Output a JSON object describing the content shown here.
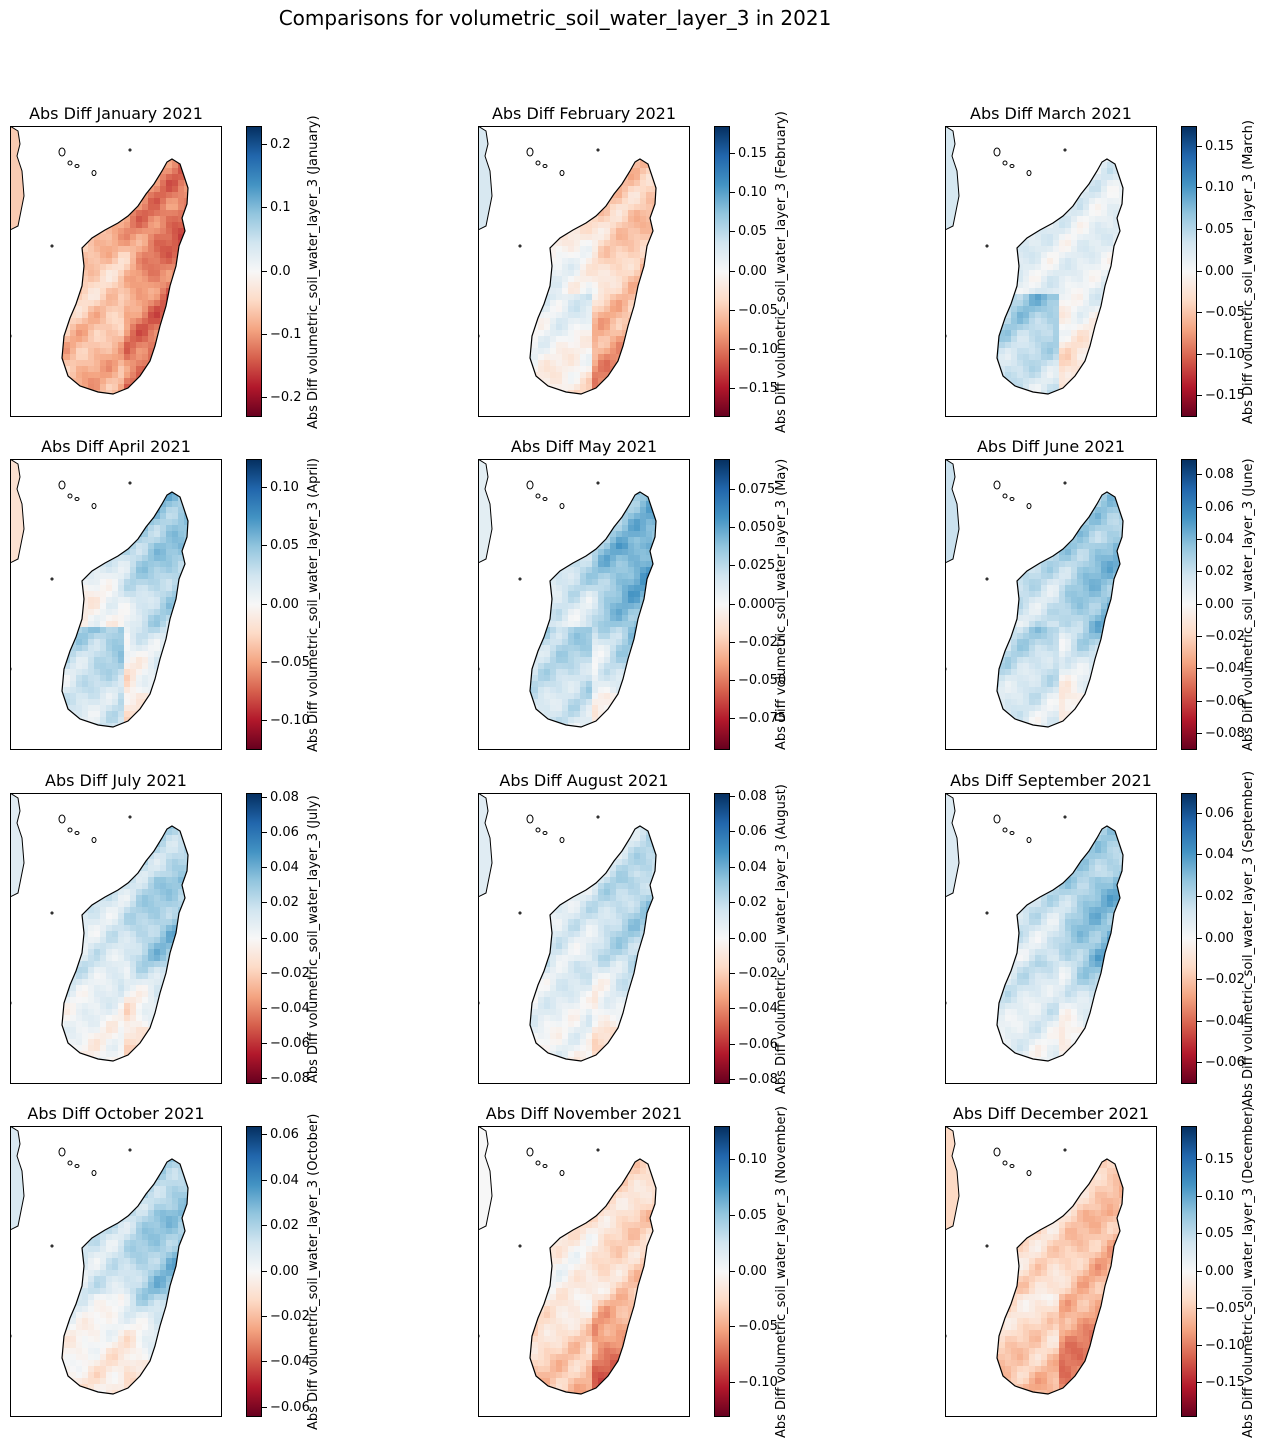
{
  "figure": {
    "title": "Comparisons for volumetric_soil_water_layer_3 in 2021"
  },
  "colors": {
    "diverging_low": "#67001f",
    "diverging_mid": "#f7f7f7",
    "diverging_high": "#053061",
    "coastline": "#000000"
  },
  "chart_data": [
    {
      "type": "heatmap",
      "title": "Abs Diff January 2021",
      "month": "January",
      "colorbar_label": "Abs Diff volumetric_soil_water_layer_3 (January)",
      "vmin": -0.23,
      "vmax": 0.23,
      "ticks": [
        "0.2",
        "0.1",
        "0.0",
        "−0.1",
        "−0.2"
      ],
      "tick_values": [
        0.2,
        0.1,
        0.0,
        -0.1,
        -0.2
      ],
      "pattern": {
        "north": -0.14,
        "east_center": -0.19,
        "west": -0.06,
        "south": -0.17,
        "southwest": -0.04
      }
    },
    {
      "type": "heatmap",
      "title": "Abs Diff February 2021",
      "month": "February",
      "colorbar_label": "Abs Diff volumetric_soil_water_layer_3 (February)",
      "vmin": -0.185,
      "vmax": 0.185,
      "ticks": [
        "0.15",
        "0.10",
        "0.05",
        "0.00",
        "−0.05",
        "−0.10",
        "−0.15"
      ],
      "tick_values": [
        0.15,
        0.1,
        0.05,
        0.0,
        -0.05,
        -0.1,
        -0.15
      ],
      "pattern": {
        "north": -0.06,
        "east_center": -0.08,
        "west": 0.03,
        "south": -0.14,
        "southwest": 0.06
      }
    },
    {
      "type": "heatmap",
      "title": "Abs Diff March 2021",
      "month": "March",
      "colorbar_label": "Abs Diff volumetric_soil_water_layer_3 (March)",
      "vmin": -0.175,
      "vmax": 0.175,
      "ticks": [
        "0.15",
        "0.10",
        "0.05",
        "0.00",
        "−0.05",
        "−0.10",
        "−0.15"
      ],
      "tick_values": [
        0.15,
        0.1,
        0.05,
        0.0,
        -0.05,
        -0.1,
        -0.15
      ],
      "pattern": {
        "north": 0.02,
        "east_center": 0.02,
        "west": 0.03,
        "south": -0.06,
        "southwest": 0.12
      }
    },
    {
      "type": "heatmap",
      "title": "Abs Diff April 2021",
      "month": "April",
      "colorbar_label": "Abs Diff volumetric_soil_water_layer_3 (April)",
      "vmin": -0.125,
      "vmax": 0.125,
      "ticks": [
        "0.10",
        "0.05",
        "0.00",
        "−0.05",
        "−0.10"
      ],
      "tick_values": [
        0.1,
        0.05,
        0.0,
        -0.05,
        -0.1
      ],
      "pattern": {
        "north": 0.07,
        "east_center": 0.06,
        "west": -0.02,
        "south": -0.04,
        "southwest": 0.09
      }
    },
    {
      "type": "heatmap",
      "title": "Abs Diff May 2021",
      "month": "May",
      "colorbar_label": "Abs Diff volumetric_soil_water_layer_3 (May)",
      "vmin": -0.095,
      "vmax": 0.095,
      "ticks": [
        "0.075",
        "0.050",
        "0.025",
        "0.000",
        "−0.025",
        "−0.050",
        "−0.075"
      ],
      "tick_values": [
        0.075,
        0.05,
        0.025,
        0.0,
        -0.025,
        -0.05,
        -0.075
      ],
      "pattern": {
        "north": 0.05,
        "east_center": 0.07,
        "west": 0.01,
        "south": -0.02,
        "southwest": 0.05
      }
    },
    {
      "type": "heatmap",
      "title": "Abs Diff June 2021",
      "month": "June",
      "colorbar_label": "Abs Diff volumetric_soil_water_layer_3 (June)",
      "vmin": -0.09,
      "vmax": 0.09,
      "ticks": [
        "0.08",
        "0.06",
        "0.04",
        "0.02",
        "0.00",
        "−0.02",
        "−0.04",
        "−0.06",
        "−0.08"
      ],
      "tick_values": [
        0.08,
        0.06,
        0.04,
        0.02,
        0.0,
        -0.02,
        -0.04,
        -0.06,
        -0.08
      ],
      "pattern": {
        "north": 0.03,
        "east_center": 0.06,
        "west": 0.02,
        "south": -0.03,
        "southwest": 0.04
      }
    },
    {
      "type": "heatmap",
      "title": "Abs Diff July 2021",
      "month": "July",
      "colorbar_label": "Abs Diff volumetric_soil_water_layer_3 (July)",
      "vmin": -0.083,
      "vmax": 0.083,
      "ticks": [
        "0.08",
        "0.06",
        "0.04",
        "0.02",
        "0.00",
        "−0.02",
        "−0.04",
        "−0.06",
        "−0.08"
      ],
      "tick_values": [
        0.08,
        0.06,
        0.04,
        0.02,
        0.0,
        -0.02,
        -0.04,
        -0.06,
        -0.08
      ],
      "pattern": {
        "north": 0.02,
        "east_center": 0.05,
        "west": 0.01,
        "south": -0.04,
        "southwest": 0.02
      }
    },
    {
      "type": "heatmap",
      "title": "Abs Diff August 2021",
      "month": "August",
      "colorbar_label": "Abs Diff volumetric_soil_water_layer_3 (August)",
      "vmin": -0.082,
      "vmax": 0.082,
      "ticks": [
        "0.08",
        "0.06",
        "0.04",
        "0.02",
        "0.00",
        "−0.02",
        "−0.04",
        "−0.06",
        "−0.08"
      ],
      "tick_values": [
        0.08,
        0.06,
        0.04,
        0.02,
        0.0,
        -0.02,
        -0.04,
        -0.06,
        -0.08
      ],
      "pattern": {
        "north": 0.02,
        "east_center": 0.04,
        "west": 0.01,
        "south": -0.03,
        "southwest": 0.02
      }
    },
    {
      "type": "heatmap",
      "title": "Abs Diff September 2021",
      "month": "September",
      "colorbar_label": "Abs Diff volumetric_soil_water_layer_3 (September)",
      "vmin": -0.07,
      "vmax": 0.07,
      "ticks": [
        "0.06",
        "0.04",
        "0.02",
        "0.00",
        "−0.02",
        "−0.04",
        "−0.06"
      ],
      "tick_values": [
        0.06,
        0.04,
        0.02,
        0.0,
        -0.02,
        -0.04,
        -0.06
      ],
      "pattern": {
        "north": 0.02,
        "east_center": 0.05,
        "west": 0.01,
        "south": -0.02,
        "southwest": 0.02
      }
    },
    {
      "type": "heatmap",
      "title": "Abs Diff October 2021",
      "month": "October",
      "colorbar_label": "Abs Diff volumetric_soil_water_layer_3 (October)",
      "vmin": -0.064,
      "vmax": 0.064,
      "ticks": [
        "0.06",
        "0.04",
        "0.02",
        "0.00",
        "−0.02",
        "−0.04",
        "−0.06"
      ],
      "tick_values": [
        0.06,
        0.04,
        0.02,
        0.0,
        -0.02,
        -0.04,
        -0.06
      ],
      "pattern": {
        "north": 0.02,
        "east_center": 0.04,
        "west": 0.01,
        "south": -0.03,
        "southwest": 0.0
      }
    },
    {
      "type": "heatmap",
      "title": "Abs Diff November 2021",
      "month": "November",
      "colorbar_label": "Abs Diff volumetric_soil_water_layer_3 (November)",
      "vmin": -0.13,
      "vmax": 0.13,
      "ticks": [
        "0.10",
        "0.05",
        "0.00",
        "−0.05",
        "−0.10"
      ],
      "tick_values": [
        0.1,
        0.05,
        0.0,
        -0.05,
        -0.1
      ],
      "pattern": {
        "north": -0.02,
        "east_center": -0.05,
        "west": 0.0,
        "south": -0.12,
        "southwest": 0.0
      }
    },
    {
      "type": "heatmap",
      "title": "Abs Diff December 2021",
      "month": "December",
      "colorbar_label": "Abs Diff volumetric_soil_water_layer_3 (December)",
      "vmin": -0.195,
      "vmax": 0.195,
      "ticks": [
        "0.15",
        "0.10",
        "0.05",
        "0.00",
        "−0.05",
        "−0.10",
        "−0.15"
      ],
      "tick_values": [
        0.15,
        0.1,
        0.05,
        0.0,
        -0.05,
        -0.1,
        -0.15
      ],
      "pattern": {
        "north": -0.05,
        "east_center": -0.1,
        "west": -0.04,
        "south": -0.16,
        "southwest": 0.0
      }
    }
  ]
}
